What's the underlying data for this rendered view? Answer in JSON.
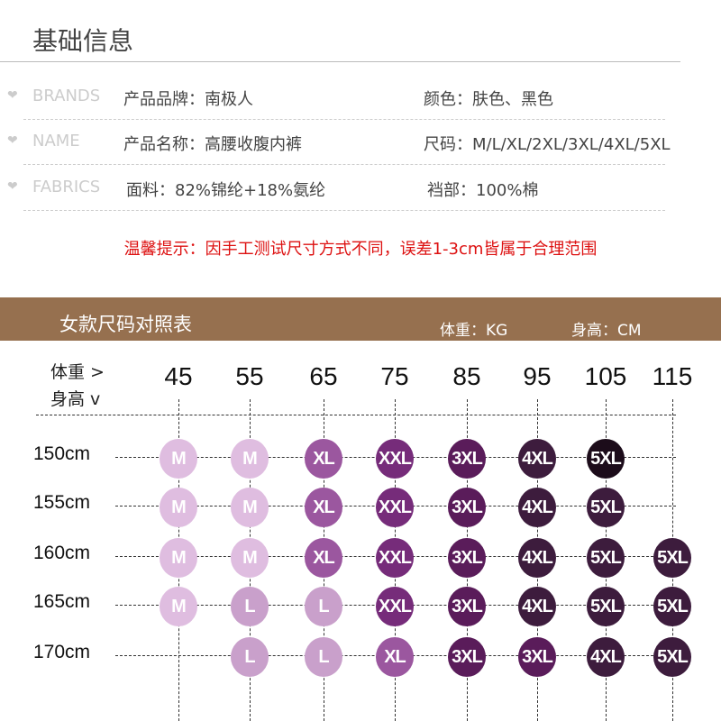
{
  "title": "基础信息",
  "info": [
    {
      "tag": "BRANDS",
      "left": "产品品牌：南极人",
      "right": "颜色：肤色、黑色"
    },
    {
      "tag": "NAME",
      "left": "产品名称：高腰收腹内裤",
      "right": "尺码：M/L/XL/2XL/3XL/4XL/5XL"
    },
    {
      "tag": "FABRICS",
      "left": "面料：82%锦纶+18%氨纶",
      "right": "裆部：100%棉"
    }
  ],
  "notice": "温馨提示：因手工测试尺寸方式不同，误差1-3cm皆属于合理范围",
  "band": {
    "title": "女款尺码对照表",
    "weight_unit": "体重：KG",
    "height_unit": "身高：CM"
  },
  "chart_data": {
    "type": "table",
    "axis_weight": "体重 >",
    "axis_height": "身高 v",
    "weights": [
      "45",
      "55",
      "65",
      "75",
      "85",
      "95",
      "105",
      "115"
    ],
    "heights": [
      "150cm",
      "155cm",
      "160cm",
      "165cm",
      "170cm"
    ],
    "sizes": [
      [
        "M",
        "M",
        "XL",
        "XXL",
        "3XL",
        "4XL",
        "5XL",
        null
      ],
      [
        "M",
        "M",
        "XL",
        "XXL",
        "3XL",
        "4XL",
        "5XL",
        null
      ],
      [
        "M",
        "M",
        "XL",
        "XXL",
        "3XL",
        "4XL",
        "5XL",
        "5XL"
      ],
      [
        "M",
        "L",
        "L",
        "XXL",
        "3XL",
        "4XL",
        "5XL",
        "5XL"
      ],
      [
        null,
        "L",
        "L",
        "XL",
        "3XL",
        "3XL",
        "4XL",
        "5XL"
      ]
    ],
    "colors": {
      "M": "#dfbde0",
      "L": "#c9a0cb",
      "XL": "#9b579f",
      "XXL": "#762c7a",
      "3XL": "#5a1c5a",
      "4XL": "#3d1c3d",
      "5XL": "#3d1c3d",
      "5XL-dark": "#1c0c1a"
    }
  }
}
